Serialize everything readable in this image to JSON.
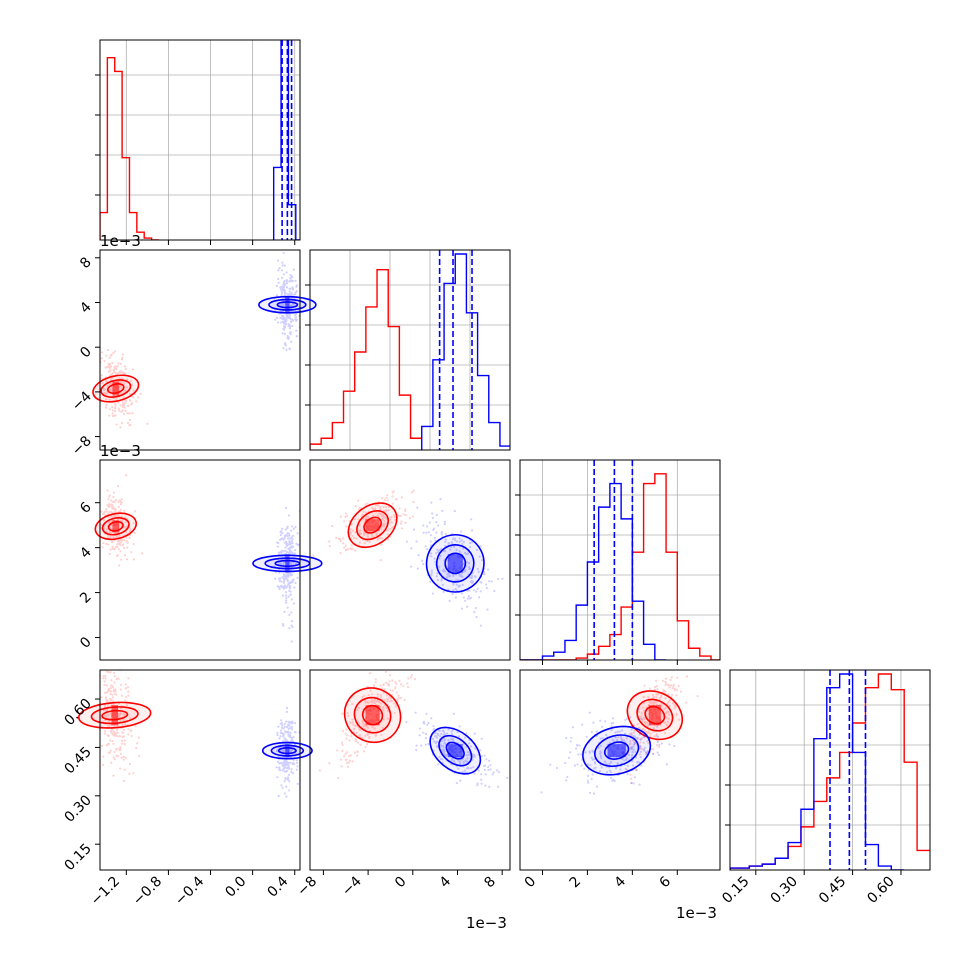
{
  "figure": {
    "type": "corner-plot",
    "colors": {
      "series_a": "#ff0000",
      "series_b": "#0000ff",
      "grid": "#b0b0b0",
      "axes": "#000000"
    }
  },
  "chart_data": [
    {
      "type": "histogram",
      "panel": "row0-col0",
      "x_range": [
        -1.45,
        0.45
      ],
      "x_ticks": [
        "−1.2",
        "−0.8",
        "−0.4",
        "0.0",
        "0.4"
      ],
      "x_tick_values": [
        -1.2,
        -0.8,
        -0.4,
        0.0,
        0.4
      ],
      "grid": true,
      "series": [
        {
          "color": "#ff0000",
          "bin_edges": [
            -1.45,
            -1.38,
            -1.31,
            -1.24,
            -1.17,
            -1.1,
            -1.03,
            -0.96,
            -0.89
          ],
          "counts": [
            0.14,
            0.93,
            0.86,
            0.42,
            0.14,
            0.04,
            0.01,
            0.0
          ]
        },
        {
          "color": "#0000ff",
          "bin_edges": [
            0.2,
            0.27,
            0.34,
            0.41,
            0.45
          ],
          "counts": [
            0.37,
            1.25,
            0.18,
            0.0
          ]
        }
      ],
      "quantile_lines": {
        "color": "#0000ff",
        "values": [
          0.28,
          0.33,
          0.37
        ]
      }
    },
    {
      "type": "histogram",
      "panel": "row1-col1",
      "x_range": [
        -9.2,
        8.7
      ],
      "offset_label": "1e−3",
      "grid": true,
      "series": [
        {
          "color": "#ff0000",
          "bin_edges": [
            -9.2,
            -8.2,
            -7.2,
            -6.2,
            -5.2,
            -4.2,
            -3.2,
            -2.2,
            -1.2,
            -0.2,
            0.8
          ],
          "counts": [
            0.03,
            0.06,
            0.14,
            0.3,
            0.5,
            0.73,
            0.92,
            0.63,
            0.28,
            0.06
          ]
        },
        {
          "color": "#0000ff",
          "bin_edges": [
            0.8,
            1.8,
            2.8,
            3.8,
            4.8,
            5.8,
            6.8,
            7.8,
            8.7
          ],
          "counts": [
            0.12,
            0.46,
            0.85,
            1.0,
            0.7,
            0.38,
            0.14,
            0.02
          ]
        }
      ],
      "quantile_lines": {
        "color": "#0000ff",
        "values": [
          2.4,
          3.6,
          5.3
        ]
      }
    },
    {
      "type": "histogram",
      "panel": "row2-col2",
      "x_range": [
        -1.0,
        7.9
      ],
      "x_ticks": [
        "0",
        "2",
        "4",
        "6"
      ],
      "x_tick_values": [
        0,
        2,
        4,
        6
      ],
      "offset_label": "1e−3",
      "grid": true,
      "series": [
        {
          "color": "#ff0000",
          "bin_edges": [
            -1.0,
            0.0,
            1.0,
            1.5,
            2.0,
            2.5,
            3.0,
            3.5,
            4.0,
            4.5,
            5.0,
            5.5,
            6.0,
            6.5,
            7.0,
            7.5,
            7.9
          ],
          "counts": [
            0.0,
            0.0,
            0.0,
            0.01,
            0.03,
            0.07,
            0.13,
            0.27,
            0.55,
            0.9,
            0.95,
            0.55,
            0.2,
            0.06,
            0.02,
            0.0
          ]
        },
        {
          "color": "#0000ff",
          "bin_edges": [
            -1.0,
            0.0,
            0.5,
            1.0,
            1.5,
            2.0,
            2.5,
            3.0,
            3.5,
            4.0,
            4.5,
            5.0,
            5.5
          ],
          "counts": [
            0.0,
            0.02,
            0.04,
            0.1,
            0.28,
            0.5,
            0.78,
            0.9,
            0.72,
            0.3,
            0.08,
            0.0
          ]
        }
      ],
      "quantile_lines": {
        "color": "#0000ff",
        "values": [
          2.3,
          3.2,
          4.0
        ]
      }
    },
    {
      "type": "histogram",
      "panel": "row3-col3",
      "x_range": [
        0.07,
        0.69
      ],
      "x_ticks": [
        "0.15",
        "0.30",
        "0.45",
        "0.60"
      ],
      "x_tick_values": [
        0.15,
        0.3,
        0.45,
        0.6
      ],
      "grid": true,
      "series": [
        {
          "color": "#ff0000",
          "bin_edges": [
            0.07,
            0.13,
            0.17,
            0.21,
            0.25,
            0.29,
            0.33,
            0.37,
            0.41,
            0.45,
            0.49,
            0.53,
            0.57,
            0.61,
            0.65,
            0.69
          ],
          "counts": [
            0.01,
            0.02,
            0.03,
            0.06,
            0.12,
            0.22,
            0.35,
            0.47,
            0.6,
            0.75,
            0.93,
            1.0,
            0.92,
            0.55,
            0.1
          ]
        },
        {
          "color": "#0000ff",
          "bin_edges": [
            0.07,
            0.13,
            0.17,
            0.21,
            0.25,
            0.29,
            0.33,
            0.37,
            0.41,
            0.45,
            0.49,
            0.53,
            0.57,
            0.61
          ],
          "counts": [
            0.01,
            0.02,
            0.03,
            0.06,
            0.14,
            0.31,
            0.67,
            0.93,
            1.0,
            0.6,
            0.13,
            0.02,
            0.0
          ]
        }
      ],
      "quantile_lines": {
        "color": "#0000ff",
        "values": [
          0.38,
          0.44,
          0.49
        ]
      }
    },
    {
      "type": "contour-scatter",
      "panel": "row1-col0",
      "x_range": [
        -1.45,
        0.45
      ],
      "y_range": [
        -9.2,
        8.7
      ],
      "y_ticks": [
        "−8",
        "−4",
        "0",
        "4",
        "8"
      ],
      "y_tick_values": [
        -8,
        -4,
        0,
        4,
        8
      ],
      "offset_label": "1e−3",
      "series": [
        {
          "color": "#ff0000",
          "center": [
            -1.3,
            -3.7
          ],
          "sigma": [
            0.07,
            1.4
          ],
          "corr": -0.4
        },
        {
          "color": "#0000ff",
          "center": [
            0.33,
            3.8
          ],
          "sigma": [
            0.045,
            1.5
          ],
          "corr": 0.0
        }
      ]
    },
    {
      "type": "contour-scatter",
      "panel": "row2-col0",
      "x_range": [
        -1.45,
        0.45
      ],
      "y_range": [
        -1.0,
        7.9
      ],
      "y_ticks": [
        "0",
        "2",
        "4",
        "6"
      ],
      "y_tick_values": [
        0,
        2,
        4,
        6
      ],
      "offset_label": "1e−3",
      "series": [
        {
          "color": "#ff0000",
          "center": [
            -1.3,
            4.95
          ],
          "sigma": [
            0.07,
            0.6
          ],
          "corr": -0.3
        },
        {
          "color": "#0000ff",
          "center": [
            0.33,
            3.3
          ],
          "sigma": [
            0.045,
            0.9
          ],
          "corr": 0.0
        }
      ]
    },
    {
      "type": "contour-scatter",
      "panel": "row2-col1",
      "x_range": [
        -9.2,
        8.7
      ],
      "y_range": [
        -1.0,
        7.9
      ],
      "series": [
        {
          "color": "#ff0000",
          "center": [
            -3.6,
            5.0
          ],
          "sigma": [
            1.4,
            0.6
          ],
          "corr": 0.5
        },
        {
          "color": "#0000ff",
          "center": [
            3.8,
            3.3
          ],
          "sigma": [
            1.5,
            0.9
          ],
          "corr": -0.5
        }
      ]
    },
    {
      "type": "contour-scatter",
      "panel": "row3-col0",
      "x_range": [
        -1.45,
        0.45
      ],
      "y_range": [
        0.07,
        0.69
      ],
      "y_ticks": [
        "0.15",
        "0.30",
        "0.45",
        "0.60"
      ],
      "y_tick_values": [
        0.15,
        0.3,
        0.45,
        0.6
      ],
      "series": [
        {
          "color": "#ff0000",
          "center": [
            -1.31,
            0.55
          ],
          "sigma": [
            0.07,
            0.07
          ],
          "corr": -0.2
        },
        {
          "color": "#0000ff",
          "center": [
            0.33,
            0.44
          ],
          "sigma": [
            0.045,
            0.045
          ],
          "corr": 0.0
        }
      ]
    },
    {
      "type": "contour-scatter",
      "panel": "row3-col1",
      "x_range": [
        -9.2,
        8.7
      ],
      "y_range": [
        0.07,
        0.69
      ],
      "x_ticks": [
        "−8",
        "−4",
        "0",
        "4",
        "8"
      ],
      "x_tick_values": [
        -8,
        -4,
        0,
        4,
        8
      ],
      "series": [
        {
          "color": "#ff0000",
          "center": [
            -3.6,
            0.55
          ],
          "sigma": [
            1.4,
            0.07
          ],
          "corr": 0.75
        },
        {
          "color": "#0000ff",
          "center": [
            3.8,
            0.44
          ],
          "sigma": [
            1.5,
            0.045
          ],
          "corr": -0.7
        }
      ]
    },
    {
      "type": "contour-scatter",
      "panel": "row3-col2",
      "x_range": [
        -1.0,
        7.9
      ],
      "y_range": [
        0.07,
        0.69
      ],
      "x_ticks": [
        "0",
        "2",
        "4",
        "6"
      ],
      "x_tick_values": [
        0,
        2,
        4,
        6
      ],
      "series": [
        {
          "color": "#ff0000",
          "center": [
            5.0,
            0.55
          ],
          "sigma": [
            0.6,
            0.07
          ],
          "corr": 0.75
        },
        {
          "color": "#0000ff",
          "center": [
            3.3,
            0.44
          ],
          "sigma": [
            0.9,
            0.045
          ],
          "corr": 0.2
        }
      ]
    }
  ],
  "offset_labels": [
    {
      "text": "1e−3"
    },
    {
      "text": "1e−3"
    },
    {
      "text": "1e−3"
    },
    {
      "text": "1e−3"
    }
  ]
}
